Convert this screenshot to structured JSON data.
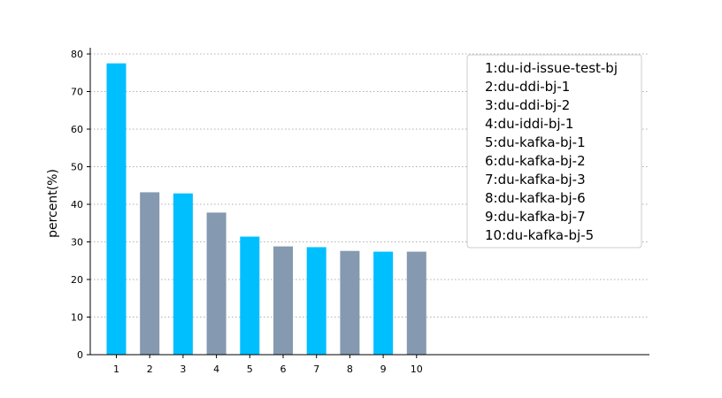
{
  "chart_data": {
    "type": "bar",
    "categories": [
      "1",
      "2",
      "3",
      "4",
      "5",
      "6",
      "7",
      "8",
      "9",
      "10"
    ],
    "values": [
      77.5,
      43.2,
      42.9,
      37.8,
      31.4,
      28.8,
      28.6,
      27.6,
      27.4,
      27.4
    ],
    "title": "",
    "xlabel": "",
    "ylabel": "percent(%)",
    "ylim": [
      0,
      80
    ],
    "xlim_categories": 17,
    "yticks": [
      0,
      10,
      20,
      30,
      40,
      50,
      60,
      70,
      80
    ],
    "grid": {
      "y": true,
      "x": false,
      "style": "dotted"
    },
    "bar_colors": [
      "#00bfff",
      "#8599b0"
    ],
    "legend": {
      "placement": "top-right",
      "entries": [
        "1:du-id-issue-test-bj",
        "2:du-ddi-bj-1",
        "3:du-ddi-bj-2",
        "4:du-iddi-bj-1",
        "5:du-kafka-bj-1",
        "6:du-kafka-bj-2",
        "7:du-kafka-bj-3",
        "8:du-kafka-bj-6",
        "9:du-kafka-bj-7",
        "10:du-kafka-bj-5"
      ]
    }
  }
}
